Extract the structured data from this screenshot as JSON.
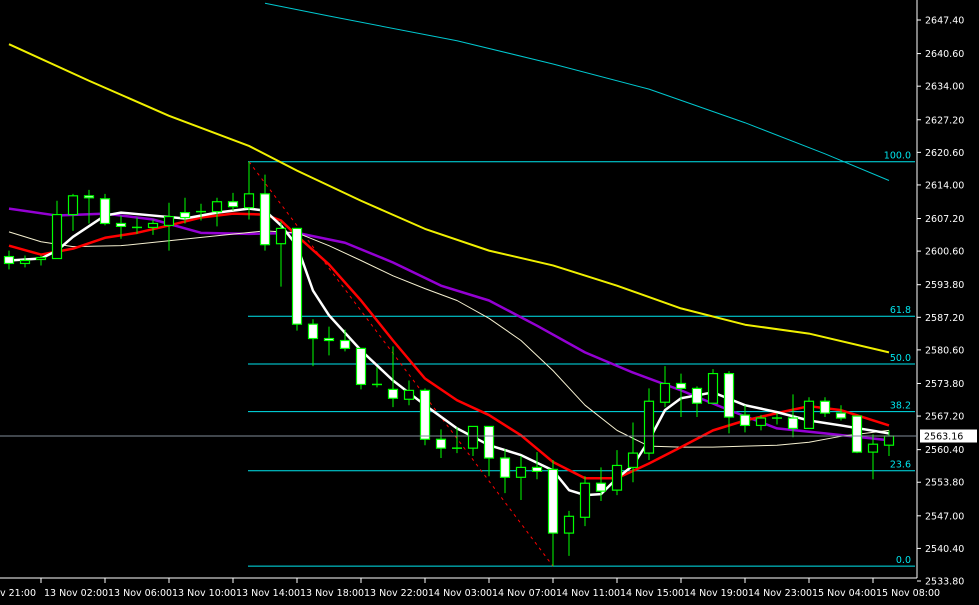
{
  "chart_data": {
    "type": "candlestick",
    "timeframe_hours": 1,
    "colors": {
      "background": "#000000",
      "axis": "#ffffff",
      "candle_outline": "#00ff00",
      "bear_body": "#ffffff",
      "bull_body": "#000000",
      "fib_lines": "#00e5ee",
      "fib_trend": "#ff0000",
      "current_price_line": "#7f8c99"
    },
    "y_axis": {
      "ylim": [
        2533.8,
        2647.4
      ],
      "ticks": [
        "2647.40",
        "2640.60",
        "2634.00",
        "2627.20",
        "2620.60",
        "2614.00",
        "2607.20",
        "2600.60",
        "2593.80",
        "2587.20",
        "2580.60",
        "2573.80",
        "2567.20",
        "2560.40",
        "2553.80",
        "2547.00",
        "2540.40",
        "2533.80"
      ]
    },
    "x_axis": {
      "partial_label": "v 21:00",
      "labels": [
        "13 Nov 02:00",
        "13 Nov 06:00",
        "13 Nov 10:00",
        "13 Nov 14:00",
        "13 Nov 18:00",
        "13 Nov 22:00",
        "14 Nov 03:00",
        "14 Nov 07:00",
        "14 Nov 11:00",
        "14 Nov 15:00",
        "14 Nov 19:00",
        "14 Nov 23:00",
        "15 Nov 04:00",
        "15 Nov 08:00"
      ]
    },
    "current_price": "2563.16",
    "candles_columns": [
      "time",
      "open",
      "high",
      "low",
      "close"
    ],
    "candles": [
      [
        "13 Nov 00:00",
        2599.5,
        2600.7,
        2596.9,
        2598.1
      ],
      [
        "13 Nov 01:00",
        2598.1,
        2599.7,
        2597.3,
        2598.7
      ],
      [
        "13 Nov 02:00",
        2598.9,
        2599.7,
        2597.7,
        2599.3
      ],
      [
        "13 Nov 03:00",
        2599.1,
        2610.8,
        2599.1,
        2608.0
      ],
      [
        "13 Nov 04:00",
        2608.0,
        2612.2,
        2604.7,
        2611.8
      ],
      [
        "13 Nov 05:00",
        2611.8,
        2613.0,
        2606.2,
        2611.4
      ],
      [
        "13 Nov 06:00",
        2611.2,
        2612.2,
        2605.8,
        2606.2
      ],
      [
        "13 Nov 07:00",
        2606.2,
        2607.8,
        2603.1,
        2605.6
      ],
      [
        "13 Nov 08:00",
        2605.4,
        2607.4,
        2604.1,
        2605.4
      ],
      [
        "13 Nov 09:00",
        2605.4,
        2607.0,
        2603.9,
        2606.2
      ],
      [
        "13 Nov 10:00",
        2605.8,
        2610.4,
        2600.7,
        2607.6
      ],
      [
        "13 Nov 11:00",
        2608.4,
        2611.4,
        2606.2,
        2607.4
      ],
      [
        "13 Nov 12:00",
        2608.6,
        2610.2,
        2606.8,
        2608.6
      ],
      [
        "13 Nov 13:00",
        2608.6,
        2611.4,
        2605.6,
        2610.6
      ],
      [
        "13 Nov 14:00",
        2610.6,
        2612.4,
        2608.8,
        2609.6
      ],
      [
        "13 Nov 15:00",
        2609.4,
        2618.7,
        2607.0,
        2612.2
      ],
      [
        "13 Nov 16:00",
        2612.2,
        2616.1,
        2600.7,
        2601.9
      ],
      [
        "13 Nov 17:00",
        2602.1,
        2606.6,
        2593.4,
        2605.2
      ],
      [
        "13 Nov 18:00",
        2605.2,
        2605.2,
        2584.5,
        2585.8
      ],
      [
        "13 Nov 19:00",
        2585.8,
        2586.8,
        2577.3,
        2582.9
      ],
      [
        "13 Nov 20:00",
        2582.9,
        2585.3,
        2579.5,
        2582.5
      ],
      [
        "13 Nov 21:00",
        2582.5,
        2584.7,
        2580.3,
        2580.9
      ],
      [
        "13 Nov 22:00",
        2580.9,
        2580.9,
        2572.6,
        2573.6
      ],
      [
        "13 Nov 23:00",
        2573.6,
        2577.1,
        2573.0,
        2573.6
      ],
      [
        "14 Nov 01:00",
        2572.6,
        2581.3,
        2569.0,
        2570.8
      ],
      [
        "14 Nov 02:00",
        2570.6,
        2574.4,
        2569.4,
        2572.4
      ],
      [
        "14 Nov 03:00",
        2572.4,
        2572.8,
        2561.3,
        2562.5
      ],
      [
        "14 Nov 04:00",
        2562.5,
        2564.5,
        2558.7,
        2560.7
      ],
      [
        "14 Nov 05:00",
        2560.7,
        2564.9,
        2559.7,
        2560.7
      ],
      [
        "14 Nov 06:00",
        2560.7,
        2565.1,
        2559.1,
        2565.1
      ],
      [
        "14 Nov 07:00",
        2565.1,
        2565.1,
        2555.0,
        2558.7
      ],
      [
        "14 Nov 08:00",
        2558.7,
        2560.5,
        2551.6,
        2554.8
      ],
      [
        "14 Nov 09:00",
        2554.8,
        2559.1,
        2550.2,
        2556.8
      ],
      [
        "14 Nov 10:00",
        2556.8,
        2559.9,
        2554.4,
        2556.0
      ],
      [
        "14 Nov 11:00",
        2556.4,
        2558.3,
        2536.8,
        2543.5
      ],
      [
        "14 Nov 12:00",
        2543.5,
        2548.0,
        2538.9,
        2546.9
      ],
      [
        "14 Nov 13:00",
        2546.7,
        2555.0,
        2544.9,
        2553.6
      ],
      [
        "14 Nov 14:00",
        2553.6,
        2556.8,
        2550.0,
        2552.0
      ],
      [
        "14 Nov 15:00",
        2552.2,
        2560.3,
        2551.2,
        2557.2
      ],
      [
        "14 Nov 16:00",
        2556.8,
        2565.9,
        2553.8,
        2559.7
      ],
      [
        "14 Nov 17:00",
        2559.7,
        2572.8,
        2558.3,
        2570.2
      ],
      [
        "14 Nov 18:00",
        2570.0,
        2577.3,
        2569.0,
        2573.8
      ],
      [
        "14 Nov 19:00",
        2573.8,
        2575.8,
        2567.0,
        2572.8
      ],
      [
        "14 Nov 20:00",
        2572.8,
        2573.2,
        2567.0,
        2569.8
      ],
      [
        "14 Nov 21:00",
        2569.8,
        2576.7,
        2569.8,
        2575.8
      ],
      [
        "14 Nov 22:00",
        2575.8,
        2576.3,
        2563.7,
        2567.0
      ],
      [
        "14 Nov 23:00",
        2567.4,
        2569.4,
        2563.9,
        2565.3
      ],
      [
        "15 Nov 01:00",
        2565.3,
        2567.4,
        2564.3,
        2566.8
      ],
      [
        "15 Nov 02:00",
        2566.8,
        2567.8,
        2565.5,
        2566.8
      ],
      [
        "15 Nov 03:00",
        2566.8,
        2571.6,
        2562.9,
        2564.7
      ],
      [
        "15 Nov 04:00",
        2564.7,
        2571.0,
        2564.7,
        2570.2
      ],
      [
        "15 Nov 05:00",
        2570.2,
        2571.0,
        2567.0,
        2567.8
      ],
      [
        "15 Nov 06:00",
        2567.8,
        2569.4,
        2566.3,
        2566.8
      ],
      [
        "15 Nov 07:00",
        2567.2,
        2567.2,
        2559.7,
        2559.9
      ],
      [
        "15 Nov 08:00",
        2559.9,
        2563.5,
        2554.4,
        2561.5
      ],
      [
        "15 Nov 09:00",
        2561.3,
        2564.3,
        2559.1,
        2563.16
      ]
    ],
    "moving_averages": [
      {
        "color": "#00c8d0",
        "width": 1,
        "points": [
          [
            "13 Nov 16:00",
            2650.8
          ],
          [
            "13 Nov 20:00",
            2648.2
          ],
          [
            "14 Nov 05:00",
            2643.2
          ],
          [
            "14 Nov 11:00",
            2638.5
          ],
          [
            "14 Nov 17:00",
            2633.4
          ],
          [
            "14 Nov 23:00",
            2626.6
          ],
          [
            "15 Nov 05:00",
            2620.3
          ],
          [
            "15 Nov 09:00",
            2614.9
          ]
        ]
      },
      {
        "color": "#f0f000",
        "width": 2,
        "points": [
          [
            "13 Nov 00:00",
            2642.5
          ],
          [
            "13 Nov 05:00",
            2635.1
          ],
          [
            "13 Nov 10:00",
            2628.0
          ],
          [
            "13 Nov 15:00",
            2621.9
          ],
          [
            "13 Nov 18:00",
            2616.9
          ],
          [
            "13 Nov 22:00",
            2610.8
          ],
          [
            "14 Nov 03:00",
            2605.1
          ],
          [
            "14 Nov 07:00",
            2600.7
          ],
          [
            "14 Nov 11:00",
            2597.7
          ],
          [
            "14 Nov 15:00",
            2593.6
          ],
          [
            "14 Nov 19:00",
            2589.0
          ],
          [
            "14 Nov 23:00",
            2585.7
          ],
          [
            "15 Nov 04:00",
            2583.9
          ],
          [
            "15 Nov 09:00",
            2580.1
          ]
        ]
      },
      {
        "color": "#9400d3",
        "width": 2.5,
        "points": [
          [
            "13 Nov 00:00",
            2609.2
          ],
          [
            "13 Nov 03:00",
            2607.8
          ],
          [
            "13 Nov 06:00",
            2608.2
          ],
          [
            "13 Nov 09:00",
            2607.0
          ],
          [
            "13 Nov 12:00",
            2604.3
          ],
          [
            "13 Nov 15:00",
            2604.1
          ],
          [
            "13 Nov 18:00",
            2604.3
          ],
          [
            "13 Nov 21:00",
            2602.3
          ],
          [
            "14 Nov 01:00",
            2598.3
          ],
          [
            "14 Nov 04:00",
            2593.6
          ],
          [
            "14 Nov 07:00",
            2590.6
          ],
          [
            "14 Nov 10:00",
            2585.5
          ],
          [
            "14 Nov 13:00",
            2580.1
          ],
          [
            "14 Nov 16:00",
            2576.0
          ],
          [
            "14 Nov 19:00",
            2572.4
          ],
          [
            "14 Nov 22:00",
            2568.4
          ],
          [
            "15 Nov 02:00",
            2564.7
          ],
          [
            "15 Nov 05:00",
            2563.7
          ],
          [
            "15 Nov 09:00",
            2562.3
          ]
        ]
      },
      {
        "color": "#f5f0d0",
        "width": 1,
        "points": [
          [
            "13 Nov 00:00",
            2604.5
          ],
          [
            "13 Nov 02:00",
            2602.5
          ],
          [
            "13 Nov 04:00",
            2601.5
          ],
          [
            "13 Nov 07:00",
            2601.7
          ],
          [
            "13 Nov 10:00",
            2602.7
          ],
          [
            "13 Nov 13:00",
            2603.7
          ],
          [
            "13 Nov 16:00",
            2604.7
          ],
          [
            "13 Nov 18:00",
            2604.3
          ],
          [
            "13 Nov 20:00",
            2601.7
          ],
          [
            "13 Nov 22:00",
            2598.7
          ],
          [
            "14 Nov 01:00",
            2595.6
          ],
          [
            "14 Nov 03:00",
            2593.0
          ],
          [
            "14 Nov 05:00",
            2590.6
          ],
          [
            "14 Nov 07:00",
            2587.0
          ],
          [
            "14 Nov 09:00",
            2582.5
          ],
          [
            "14 Nov 11:00",
            2576.4
          ],
          [
            "14 Nov 13:00",
            2569.4
          ],
          [
            "14 Nov 15:00",
            2564.3
          ],
          [
            "14 Nov 17:00",
            2561.1
          ],
          [
            "14 Nov 19:00",
            2560.9
          ],
          [
            "14 Nov 21:00",
            2560.9
          ],
          [
            "14 Nov 23:00",
            2561.1
          ],
          [
            "15 Nov 02:00",
            2561.3
          ],
          [
            "15 Nov 04:00",
            2561.9
          ],
          [
            "15 Nov 06:00",
            2563.1
          ],
          [
            "15 Nov 09:00",
            2564.3
          ]
        ]
      },
      {
        "color": "#ff0000",
        "width": 2.5,
        "points": [
          [
            "13 Nov 00:00",
            2601.7
          ],
          [
            "13 Nov 02:00",
            2599.9
          ],
          [
            "13 Nov 04:00",
            2601.1
          ],
          [
            "13 Nov 06:00",
            2603.3
          ],
          [
            "13 Nov 08:00",
            2604.3
          ],
          [
            "13 Nov 10:00",
            2605.8
          ],
          [
            "13 Nov 12:00",
            2607.4
          ],
          [
            "13 Nov 14:00",
            2608.2
          ],
          [
            "13 Nov 16:00",
            2608.0
          ],
          [
            "13 Nov 17:00",
            2606.8
          ],
          [
            "13 Nov 18:00",
            2603.7
          ],
          [
            "13 Nov 20:00",
            2597.9
          ],
          [
            "13 Nov 22:00",
            2590.6
          ],
          [
            "14 Nov 01:00",
            2582.5
          ],
          [
            "14 Nov 03:00",
            2574.8
          ],
          [
            "14 Nov 05:00",
            2570.4
          ],
          [
            "14 Nov 07:00",
            2567.4
          ],
          [
            "14 Nov 09:00",
            2563.3
          ],
          [
            "14 Nov 11:00",
            2557.9
          ],
          [
            "14 Nov 13:00",
            2554.6
          ],
          [
            "14 Nov 15:00",
            2554.6
          ],
          [
            "14 Nov 17:00",
            2557.6
          ],
          [
            "14 Nov 19:00",
            2560.9
          ],
          [
            "14 Nov 21:00",
            2564.3
          ],
          [
            "14 Nov 23:00",
            2566.3
          ],
          [
            "15 Nov 02:00",
            2567.8
          ],
          [
            "15 Nov 04:00",
            2569.2
          ],
          [
            "15 Nov 06:00",
            2568.4
          ],
          [
            "15 Nov 09:00",
            2565.3
          ]
        ]
      },
      {
        "color": "#ffffff",
        "width": 2.5,
        "points": [
          [
            "13 Nov 00:00",
            2598.7
          ],
          [
            "13 Nov 02:00",
            2599.1
          ],
          [
            "13 Nov 03:00",
            2600.7
          ],
          [
            "13 Nov 04:00",
            2603.5
          ],
          [
            "13 Nov 06:00",
            2607.8
          ],
          [
            "13 Nov 07:00",
            2608.4
          ],
          [
            "13 Nov 09:00",
            2607.8
          ],
          [
            "13 Nov 11:00",
            2607.2
          ],
          [
            "13 Nov 13:00",
            2608.4
          ],
          [
            "13 Nov 15:00",
            2609.2
          ],
          [
            "13 Nov 16:00",
            2608.8
          ],
          [
            "13 Nov 17:00",
            2605.8
          ],
          [
            "13 Nov 18:00",
            2601.7
          ],
          [
            "13 Nov 19:00",
            2592.6
          ],
          [
            "13 Nov 20:00",
            2587.6
          ],
          [
            "13 Nov 22:00",
            2580.5
          ],
          [
            "14 Nov 01:00",
            2574.4
          ],
          [
            "14 Nov 03:00",
            2569.4
          ],
          [
            "14 Nov 05:00",
            2564.7
          ],
          [
            "14 Nov 07:00",
            2561.3
          ],
          [
            "14 Nov 09:00",
            2559.3
          ],
          [
            "14 Nov 11:00",
            2556.2
          ],
          [
            "14 Nov 12:00",
            2552.2
          ],
          [
            "14 Nov 13:00",
            2551.2
          ],
          [
            "14 Nov 14:00",
            2551.4
          ],
          [
            "14 Nov 15:00",
            2554.6
          ],
          [
            "14 Nov 16:00",
            2557.2
          ],
          [
            "14 Nov 17:00",
            2562.3
          ],
          [
            "14 Nov 18:00",
            2568.4
          ],
          [
            "14 Nov 19:00",
            2570.8
          ],
          [
            "14 Nov 20:00",
            2571.4
          ],
          [
            "14 Nov 21:00",
            2572.0
          ],
          [
            "14 Nov 23:00",
            2569.4
          ],
          [
            "15 Nov 02:00",
            2568.0
          ],
          [
            "15 Nov 04:00",
            2566.3
          ],
          [
            "15 Nov 06:00",
            2565.3
          ],
          [
            "15 Nov 09:00",
            2563.7
          ]
        ]
      }
    ],
    "fibonacci": {
      "from": [
        "13 Nov 15:00",
        2618.7
      ],
      "to": [
        "14 Nov 11:00",
        2536.8
      ],
      "levels": [
        {
          "label": "100.0",
          "ratio": 1.0
        },
        {
          "label": "61.8",
          "ratio": 0.618
        },
        {
          "label": "50.0",
          "ratio": 0.5
        },
        {
          "label": "38.2",
          "ratio": 0.382
        },
        {
          "label": "23.6",
          "ratio": 0.236
        },
        {
          "label": "0.0",
          "ratio": 0.0
        }
      ]
    }
  }
}
